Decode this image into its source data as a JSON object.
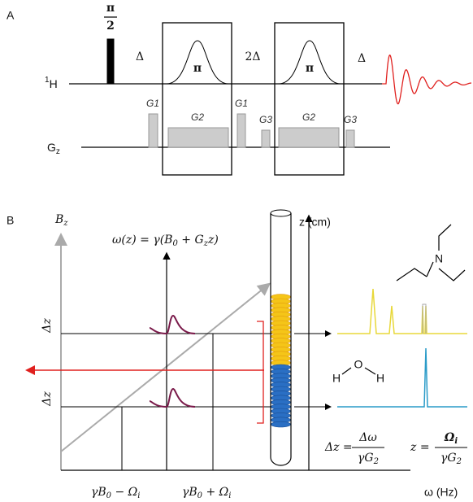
{
  "panel_labels": [
    "A",
    "B"
  ],
  "sequence": {
    "pulse_90": {
      "numerator": "π",
      "denominator": "2"
    },
    "delays": [
      "Δ",
      "2Δ",
      "Δ"
    ],
    "pulses_180": [
      "π",
      "π"
    ],
    "proton_channel": [
      {
        "sup": "1"
      },
      {
        "text": "H"
      }
    ],
    "gradient_channel": [
      {
        "text": "G"
      },
      {
        "sub": "z"
      }
    ],
    "gradients": [
      "G1",
      "G2",
      "G1",
      "G3",
      "G2",
      "G3"
    ]
  },
  "imaging": {
    "field_axis": [
      {
        "text": "B"
      },
      {
        "sub": "z"
      }
    ],
    "frequency_relation": [
      {
        "text": "ω(z) = γ(B"
      },
      {
        "sub": "0"
      },
      {
        "text": " + G"
      },
      {
        "sub": "z"
      },
      {
        "text": "z)"
      }
    ],
    "position_axis": "z (cm)",
    "slice_labels": [
      "Δz",
      "Δz"
    ],
    "x_labels": [
      [
        {
          "text": "γB"
        },
        {
          "sub": "0"
        },
        {
          "text": " − Ω"
        },
        {
          "sub": "i"
        }
      ],
      [
        {
          "text": "γB"
        },
        {
          "sub": "0"
        },
        {
          "text": " + Ω"
        },
        {
          "sub": "i"
        }
      ]
    ],
    "x_axis": "ω (Hz)",
    "amine_atom": "N",
    "water_atoms": [
      "H",
      "O",
      "H"
    ],
    "equations": [
      {
        "lhs": "Δz =",
        "numerator": [
          {
            "text": "Δω"
          }
        ],
        "denominator": [
          {
            "text": "γG"
          },
          {
            "sub": "2"
          }
        ]
      },
      {
        "lhs": "z =",
        "numerator": [
          {
            "text": "Ω"
          },
          {
            "sub": "i"
          }
        ],
        "denominator": [
          {
            "text": "γG"
          },
          {
            "sub": "2"
          }
        ]
      }
    ]
  }
}
